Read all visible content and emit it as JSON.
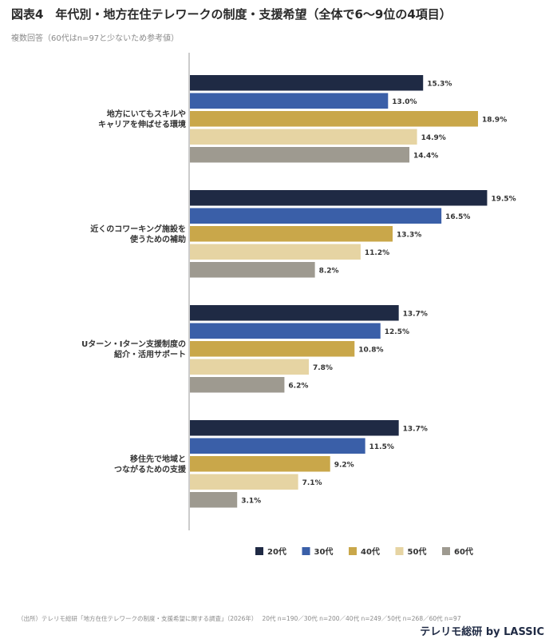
{
  "header": {
    "title": "図表4　年代別・地方在住テレワークの制度・支援希望（全体で6〜9位の4項目）",
    "subtitle": "複数回答（60代はn=97と少ないため参考値）"
  },
  "footer": {
    "source": "（出所）テレリモ総研「地方在住テレワークの制度・支援希望に関する調査」（2026年）　 20代 n=190／30代 n=200／40代 n=249／50代 n=268／60代 n=97",
    "brand": "テレリモ総研 by LASSIC"
  },
  "chart_data": {
    "type": "bar",
    "orientation": "horizontal",
    "categories": [
      [
        "地方にいてもスキルや",
        "キャリアを伸ばせる環境"
      ],
      [
        "近くのコワーキング施設を",
        "使うための補助"
      ],
      [
        "Uターン・Iターン支援制度の",
        "紹介・活用サポート"
      ],
      [
        "移住先で地域と",
        "つながるための支援"
      ]
    ],
    "series": [
      {
        "name": "20代",
        "color": "#1f2a44",
        "values": [
          15.3,
          19.5,
          13.7,
          13.7
        ]
      },
      {
        "name": "30代",
        "color": "#3a5fa8",
        "values": [
          13.0,
          16.5,
          12.5,
          11.5
        ]
      },
      {
        "name": "40代",
        "color": "#c9a74a",
        "values": [
          18.9,
          13.3,
          10.8,
          9.2
        ]
      },
      {
        "name": "50代",
        "color": "#e6d4a3",
        "values": [
          14.9,
          11.2,
          7.8,
          7.1
        ]
      },
      {
        "name": "60代",
        "color": "#9e9a90",
        "values": [
          14.4,
          8.2,
          6.2,
          3.1
        ]
      }
    ],
    "value_suffix": "%",
    "xlim": [
      0,
      20
    ],
    "legend_position": "bottom",
    "grid": false
  }
}
